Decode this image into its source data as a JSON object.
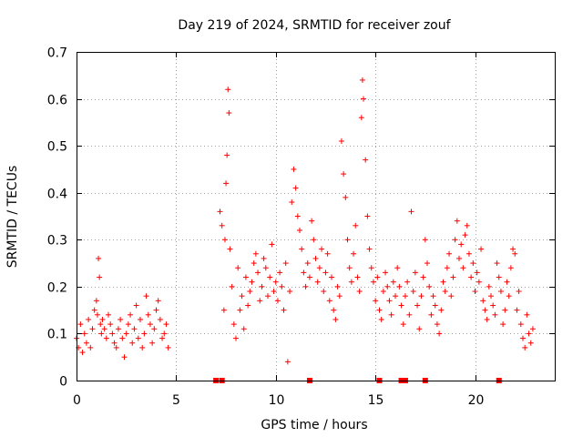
{
  "chart_data": {
    "type": "scatter",
    "title": "Day 219 of 2024, SRMTID for receiver zouf",
    "xlabel": "GPS time / hours",
    "ylabel": "SRMTID / TECUs",
    "xlim": [
      0,
      24
    ],
    "ylim": [
      0,
      0.7
    ],
    "xticks": [
      0,
      5,
      10,
      15,
      20
    ],
    "xtick_labels": [
      "0",
      "5",
      "10",
      "15",
      "20"
    ],
    "yticks": [
      0,
      0.1,
      0.2,
      0.3,
      0.4,
      0.5,
      0.6,
      0.7
    ],
    "ytick_labels": [
      "0",
      "0.1",
      "0.2",
      "0.3",
      "0.4",
      "0.5",
      "0.6",
      "0.7"
    ],
    "grid": true,
    "marker": "plus",
    "color": "#ff0000",
    "series": [
      {
        "name": "SRMTID",
        "x": [
          0.0,
          0.1,
          0.2,
          0.3,
          0.4,
          0.5,
          0.6,
          0.7,
          0.8,
          0.9,
          1.0,
          1.05,
          1.1,
          1.15,
          1.2,
          1.25,
          1.3,
          1.4,
          1.5,
          1.6,
          1.7,
          1.8,
          1.9,
          2.0,
          2.1,
          2.2,
          2.3,
          2.4,
          2.5,
          2.6,
          2.7,
          2.8,
          2.9,
          3.0,
          3.1,
          3.2,
          3.3,
          3.4,
          3.5,
          3.6,
          3.7,
          3.8,
          3.9,
          4.0,
          4.1,
          4.2,
          4.3,
          4.4,
          4.5,
          4.6,
          7.2,
          7.3,
          7.4,
          7.45,
          7.5,
          7.55,
          7.6,
          7.65,
          7.7,
          7.8,
          7.9,
          8.0,
          8.1,
          8.2,
          8.3,
          8.4,
          8.5,
          8.6,
          8.7,
          8.8,
          8.9,
          9.0,
          9.1,
          9.2,
          9.3,
          9.4,
          9.5,
          9.6,
          9.7,
          9.8,
          9.9,
          10.0,
          10.1,
          10.2,
          10.3,
          10.4,
          10.5,
          10.6,
          10.7,
          10.8,
          10.9,
          11.0,
          11.1,
          11.2,
          11.3,
          11.4,
          11.5,
          11.6,
          11.7,
          11.8,
          11.9,
          12.0,
          12.1,
          12.2,
          12.3,
          12.4,
          12.5,
          12.6,
          12.7,
          12.8,
          12.9,
          13.0,
          13.1,
          13.2,
          13.3,
          13.4,
          13.5,
          13.6,
          13.7,
          13.8,
          13.9,
          14.0,
          14.1,
          14.2,
          14.3,
          14.35,
          14.4,
          14.5,
          14.6,
          14.7,
          14.8,
          14.9,
          15.0,
          15.1,
          15.2,
          15.3,
          15.4,
          15.5,
          15.6,
          15.7,
          15.8,
          15.9,
          16.0,
          16.1,
          16.2,
          16.3,
          16.4,
          16.5,
          16.6,
          16.7,
          16.8,
          16.9,
          17.0,
          17.1,
          17.2,
          17.3,
          17.4,
          17.5,
          17.6,
          17.7,
          17.8,
          17.9,
          18.0,
          18.1,
          18.2,
          18.3,
          18.4,
          18.5,
          18.6,
          18.7,
          18.8,
          18.9,
          19.0,
          19.1,
          19.2,
          19.3,
          19.4,
          19.5,
          19.6,
          19.7,
          19.8,
          19.9,
          20.0,
          20.1,
          20.2,
          20.3,
          20.4,
          20.5,
          20.6,
          20.7,
          20.8,
          20.9,
          21.0,
          21.1,
          21.2,
          21.3,
          21.4,
          21.5,
          21.6,
          21.7,
          21.8,
          21.9,
          22.0,
          22.1,
          22.2,
          22.3,
          22.4,
          22.5,
          22.6,
          22.7,
          22.8,
          22.9
        ],
        "y": [
          0.09,
          0.07,
          0.12,
          0.06,
          0.1,
          0.08,
          0.13,
          0.07,
          0.11,
          0.15,
          0.17,
          0.14,
          0.26,
          0.22,
          0.12,
          0.1,
          0.13,
          0.11,
          0.09,
          0.14,
          0.12,
          0.1,
          0.08,
          0.07,
          0.11,
          0.13,
          0.09,
          0.05,
          0.1,
          0.12,
          0.14,
          0.08,
          0.11,
          0.16,
          0.09,
          0.13,
          0.07,
          0.1,
          0.18,
          0.14,
          0.12,
          0.08,
          0.11,
          0.15,
          0.17,
          0.13,
          0.09,
          0.1,
          0.12,
          0.07,
          0.36,
          0.33,
          0.15,
          0.3,
          0.42,
          0.48,
          0.62,
          0.57,
          0.28,
          0.2,
          0.12,
          0.09,
          0.24,
          0.15,
          0.18,
          0.11,
          0.22,
          0.16,
          0.19,
          0.21,
          0.25,
          0.27,
          0.23,
          0.17,
          0.2,
          0.26,
          0.24,
          0.18,
          0.22,
          0.29,
          0.19,
          0.21,
          0.17,
          0.23,
          0.2,
          0.15,
          0.25,
          0.04,
          0.19,
          0.38,
          0.45,
          0.41,
          0.35,
          0.32,
          0.28,
          0.23,
          0.2,
          0.25,
          0.22,
          0.34,
          0.3,
          0.26,
          0.21,
          0.24,
          0.28,
          0.19,
          0.23,
          0.27,
          0.17,
          0.22,
          0.15,
          0.13,
          0.2,
          0.18,
          0.51,
          0.44,
          0.39,
          0.3,
          0.24,
          0.21,
          0.27,
          0.33,
          0.22,
          0.19,
          0.56,
          0.64,
          0.6,
          0.47,
          0.35,
          0.28,
          0.24,
          0.21,
          0.17,
          0.22,
          0.15,
          0.13,
          0.19,
          0.23,
          0.2,
          0.17,
          0.14,
          0.21,
          0.18,
          0.24,
          0.2,
          0.16,
          0.12,
          0.18,
          0.21,
          0.14,
          0.36,
          0.19,
          0.23,
          0.16,
          0.11,
          0.18,
          0.22,
          0.3,
          0.25,
          0.2,
          0.14,
          0.18,
          0.16,
          0.12,
          0.1,
          0.15,
          0.21,
          0.19,
          0.24,
          0.27,
          0.18,
          0.22,
          0.3,
          0.34,
          0.26,
          0.29,
          0.24,
          0.31,
          0.33,
          0.27,
          0.22,
          0.25,
          0.19,
          0.23,
          0.21,
          0.28,
          0.17,
          0.15,
          0.13,
          0.2,
          0.18,
          0.16,
          0.14,
          0.25,
          0.22,
          0.19,
          0.12,
          0.15,
          0.21,
          0.18,
          0.24,
          0.28,
          0.27,
          0.15,
          0.19,
          0.12,
          0.09,
          0.07,
          0.14,
          0.1,
          0.08,
          0.11
        ]
      }
    ],
    "zero_markers_x": [
      7.0,
      7.3,
      11.7,
      15.2,
      16.3,
      16.5,
      17.5,
      21.2
    ]
  }
}
